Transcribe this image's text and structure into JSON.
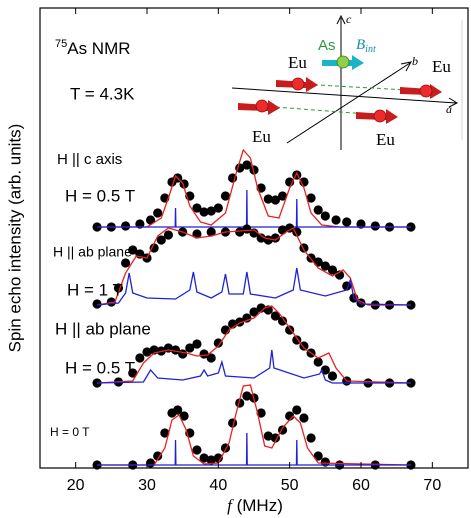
{
  "chart_data": {
    "type": "line",
    "xlabel_symbol": "f",
    "xlabel": "(MHz)",
    "ylabel": "Spin echo intensity (arb. units)",
    "xlim": [
      15,
      75
    ],
    "xticks": [
      20,
      30,
      40,
      50,
      60,
      70
    ],
    "ylim": [
      0,
      4.6
    ],
    "annotations": {
      "nucleus_mass": "75",
      "nucleus_label": "As NMR",
      "temperature": "T = 4.3K",
      "panel_1_direction": "H || c axis",
      "panel_1_field": "H = 0.5 T",
      "panel_2_direction": "H || ab plane",
      "panel_2_field": "H = 1 T",
      "panel_3_direction": "H || ab plane",
      "panel_3_field": "H = 0.5 T",
      "panel_4_field": "H = 0 T"
    },
    "inset": {
      "eu_labels": [
        "Eu",
        "Eu",
        "Eu",
        "Eu"
      ],
      "as_label": "As",
      "field_symbol": "B",
      "field_subscript": "int",
      "axis_a": "a",
      "axis_b": "b",
      "axis_c": "c"
    },
    "series": [
      {
        "type": "scatter",
        "color": "#000000",
        "x": [
          23,
          25,
          27,
          29,
          30.5,
          31.5,
          32.5,
          33.5,
          34.3,
          35.2,
          36,
          37,
          38,
          39,
          40,
          41,
          42,
          43,
          44,
          45,
          46,
          47,
          48,
          49,
          50,
          51,
          52,
          53,
          54,
          55,
          56.5,
          58,
          60,
          62,
          64,
          67
        ],
        "values": [
          2.41,
          2.41,
          2.42,
          2.44,
          2.48,
          2.55,
          2.7,
          2.86,
          2.9,
          2.84,
          2.72,
          2.6,
          2.56,
          2.57,
          2.6,
          2.72,
          2.9,
          3.0,
          3.03,
          2.98,
          2.8,
          2.69,
          2.68,
          2.72,
          2.86,
          2.93,
          2.86,
          2.7,
          2.58,
          2.52,
          2.48,
          2.46,
          2.44,
          2.42,
          2.41,
          2.41
        ]
      },
      {
        "type": "line",
        "color": "#e8221f",
        "x": [
          23,
          30,
          32,
          33,
          34,
          35,
          36,
          37.5,
          39,
          41,
          42.5,
          43.5,
          44.5,
          45.5,
          47,
          48.5,
          50,
          51,
          52,
          53,
          54.5,
          57,
          67
        ],
        "values": [
          2.41,
          2.41,
          2.5,
          2.7,
          2.92,
          2.85,
          2.62,
          2.46,
          2.43,
          2.55,
          2.95,
          3.18,
          3.1,
          2.8,
          2.52,
          2.5,
          2.8,
          2.95,
          2.8,
          2.55,
          2.43,
          2.41,
          2.41
        ]
      },
      {
        "type": "line",
        "color": "#1f22d6",
        "x": [
          23,
          33.95,
          34,
          34.05,
          43.95,
          44,
          44.05,
          50.95,
          51,
          51.05,
          67
        ],
        "values": [
          2.41,
          2.41,
          2.6,
          2.41,
          2.41,
          2.78,
          2.41,
          2.41,
          2.69,
          2.41,
          2.41
        ]
      },
      {
        "type": "scatter",
        "color": "#000000",
        "x": [
          23,
          25,
          26,
          27,
          28,
          29,
          30,
          31,
          32,
          33,
          35,
          37,
          39,
          41,
          43,
          44,
          45,
          46,
          47,
          48,
          49,
          50,
          51,
          52,
          53,
          54,
          55,
          56,
          57,
          58,
          59,
          60,
          62,
          64,
          67
        ],
        "values": [
          1.64,
          1.66,
          1.8,
          2.05,
          2.18,
          2.14,
          2.1,
          2.2,
          2.28,
          2.33,
          2.36,
          2.34,
          2.36,
          2.36,
          2.36,
          2.39,
          2.35,
          2.3,
          2.28,
          2.3,
          2.38,
          2.4,
          2.36,
          2.2,
          2.1,
          2.06,
          2.02,
          1.98,
          1.93,
          1.82,
          1.7,
          1.65,
          1.63,
          1.63,
          1.63
        ]
      },
      {
        "type": "line",
        "color": "#e8221f",
        "x": [
          23,
          25.5,
          27,
          28.5,
          30,
          31.5,
          33,
          35,
          37,
          39,
          41,
          43,
          45,
          46.5,
          48,
          49.5,
          50.5,
          52,
          54,
          56,
          57.5,
          58.5,
          59.5,
          61,
          67
        ],
        "values": [
          1.63,
          1.66,
          1.95,
          2.12,
          2.1,
          2.32,
          2.4,
          2.36,
          2.3,
          2.32,
          2.36,
          2.37,
          2.38,
          2.3,
          2.28,
          2.36,
          2.4,
          2.18,
          2.0,
          1.92,
          1.98,
          1.9,
          1.68,
          1.63,
          1.63
        ]
      },
      {
        "type": "line",
        "color": "#1f22d6",
        "x": [
          23,
          26,
          27,
          27.5,
          28,
          30,
          34,
          36,
          36.5,
          37,
          39,
          40.5,
          41,
          41.5,
          43.5,
          44,
          44.5,
          48,
          50.5,
          51,
          51.5,
          55,
          58,
          58.5,
          59,
          60,
          67
        ],
        "values": [
          1.63,
          1.65,
          1.75,
          1.95,
          1.75,
          1.7,
          1.69,
          1.78,
          1.96,
          1.76,
          1.7,
          1.76,
          1.94,
          1.74,
          1.74,
          1.96,
          1.74,
          1.7,
          1.78,
          2.0,
          1.78,
          1.72,
          1.78,
          1.88,
          1.7,
          1.64,
          1.63
        ]
      },
      {
        "type": "scatter",
        "color": "#000000",
        "x": [
          23,
          26,
          28,
          29,
          30,
          31,
          32,
          33,
          34,
          35,
          36,
          37,
          38,
          39,
          40,
          41,
          42,
          43,
          44,
          45,
          46,
          47,
          48,
          49,
          50,
          51,
          52,
          53,
          54,
          55,
          56,
          58,
          61,
          64,
          67
        ],
        "values": [
          0.85,
          0.86,
          0.95,
          1.1,
          1.16,
          1.18,
          1.17,
          1.2,
          1.18,
          1.14,
          1.2,
          1.24,
          1.14,
          1.1,
          1.25,
          1.38,
          1.44,
          1.46,
          1.5,
          1.56,
          1.6,
          1.58,
          1.52,
          1.47,
          1.38,
          1.28,
          1.22,
          1.15,
          1.06,
          0.98,
          0.92,
          0.87,
          0.85,
          0.85,
          0.85
        ]
      },
      {
        "type": "line",
        "color": "#e8221f",
        "x": [
          23,
          28,
          29.5,
          31,
          33,
          35.5,
          37,
          38.5,
          40,
          41.5,
          43,
          45,
          46.5,
          47.5,
          48.5,
          50,
          52,
          54,
          55.5,
          56.5,
          58,
          67
        ],
        "values": [
          0.85,
          0.87,
          1.05,
          1.15,
          1.18,
          1.15,
          1.12,
          1.13,
          1.22,
          1.38,
          1.45,
          1.5,
          1.6,
          1.62,
          1.55,
          1.4,
          1.2,
          1.1,
          1.15,
          1.0,
          0.87,
          0.85
        ]
      },
      {
        "type": "line",
        "color": "#1f22d6",
        "x": [
          23,
          29.5,
          30.5,
          31.5,
          35,
          37.5,
          38,
          38.5,
          40,
          40.5,
          41,
          45,
          47.2,
          47.5,
          47.8,
          52,
          54.2,
          54.5,
          55,
          56,
          67
        ],
        "values": [
          0.85,
          0.86,
          0.98,
          0.9,
          0.88,
          0.92,
          0.98,
          0.92,
          0.95,
          1.06,
          0.92,
          0.9,
          1.0,
          1.18,
          1.0,
          0.9,
          0.94,
          0.98,
          0.88,
          0.85,
          0.85
        ]
      },
      {
        "type": "scatter",
        "color": "#000000",
        "x": [
          23,
          28,
          30.5,
          31.5,
          32.5,
          33.5,
          34.3,
          35.2,
          36,
          37,
          38,
          39,
          40,
          41,
          42,
          43,
          44,
          45,
          46,
          47,
          48,
          49,
          50,
          51,
          52,
          53,
          54,
          55,
          57,
          62,
          67
        ],
        "values": [
          0.03,
          0.03,
          0.05,
          0.12,
          0.35,
          0.55,
          0.58,
          0.52,
          0.35,
          0.18,
          0.1,
          0.08,
          0.1,
          0.2,
          0.45,
          0.65,
          0.72,
          0.7,
          0.55,
          0.32,
          0.3,
          0.38,
          0.52,
          0.58,
          0.5,
          0.3,
          0.12,
          0.06,
          0.03,
          0.03,
          0.03
        ]
      },
      {
        "type": "line",
        "color": "#e8221f",
        "x": [
          23,
          31,
          32.5,
          33.5,
          34.5,
          35.5,
          36.5,
          38,
          40,
          41.5,
          42.5,
          43.5,
          44.5,
          45.5,
          46.5,
          47.5,
          49,
          50.5,
          51.5,
          52.5,
          54,
          67
        ],
        "values": [
          0.03,
          0.03,
          0.2,
          0.48,
          0.53,
          0.38,
          0.12,
          0.04,
          0.05,
          0.25,
          0.55,
          0.82,
          0.83,
          0.55,
          0.22,
          0.2,
          0.4,
          0.52,
          0.45,
          0.2,
          0.05,
          0.03
        ]
      },
      {
        "type": "line",
        "color": "#1f22d6",
        "x": [
          23,
          33.95,
          34,
          34.05,
          43.95,
          44,
          44.05,
          50.95,
          51,
          51.05,
          67
        ],
        "values": [
          0.03,
          0.03,
          0.28,
          0.03,
          0.03,
          0.35,
          0.03,
          0.03,
          0.28,
          0.03,
          0.03
        ]
      }
    ]
  }
}
